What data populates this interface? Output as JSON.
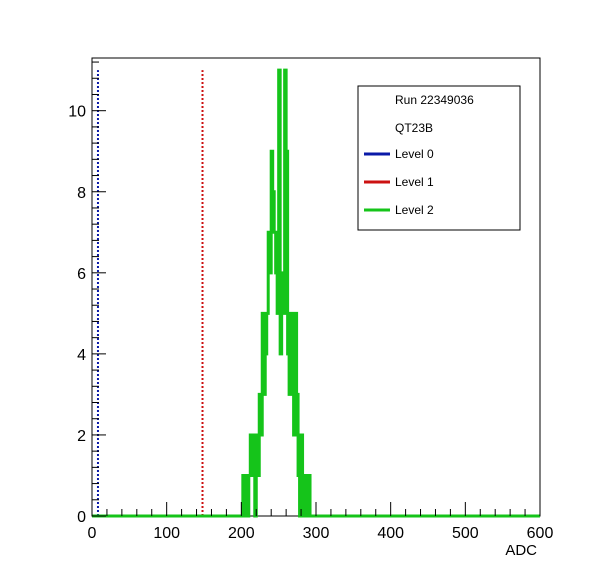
{
  "chart_data": {
    "type": "histogram-step",
    "title": "",
    "xlabel": "ADC",
    "ylabel": "",
    "xlim": [
      0,
      600
    ],
    "ylim": [
      0,
      11.3
    ],
    "x_ticks": [
      0,
      100,
      200,
      300,
      400,
      500,
      600
    ],
    "y_ticks": [
      0,
      2,
      4,
      6,
      8,
      10
    ],
    "grid": false,
    "legend": {
      "position": "top-right",
      "header": [
        "Run 22349036",
        "QT23B"
      ],
      "entries": [
        {
          "label": "Level 0",
          "color": "#0a1aa8"
        },
        {
          "label": "Level 1",
          "color": "#cc1111"
        },
        {
          "label": "Level 2",
          "color": "#15c41a"
        }
      ]
    },
    "threshold_lines": [
      {
        "name": "Level 0",
        "x": 8,
        "color": "#0a1aa8",
        "style": "dotted"
      },
      {
        "name": "Level 1",
        "x": 148,
        "color": "#cc1111",
        "style": "dotted"
      }
    ],
    "series": [
      {
        "name": "Level 2",
        "color": "#15c41a",
        "bin_width": 2,
        "bins": [
          [
            200,
            0
          ],
          [
            202,
            1
          ],
          [
            204,
            0
          ],
          [
            206,
            1
          ],
          [
            208,
            0
          ],
          [
            210,
            1
          ],
          [
            212,
            2
          ],
          [
            214,
            1
          ],
          [
            216,
            2
          ],
          [
            218,
            0
          ],
          [
            220,
            2
          ],
          [
            222,
            1
          ],
          [
            224,
            3
          ],
          [
            226,
            2
          ],
          [
            228,
            5
          ],
          [
            230,
            3
          ],
          [
            232,
            4
          ],
          [
            234,
            5
          ],
          [
            236,
            7
          ],
          [
            238,
            6
          ],
          [
            240,
            9
          ],
          [
            242,
            8
          ],
          [
            244,
            7
          ],
          [
            246,
            6
          ],
          [
            248,
            5
          ],
          [
            250,
            11
          ],
          [
            252,
            4
          ],
          [
            254,
            6
          ],
          [
            256,
            5
          ],
          [
            258,
            11
          ],
          [
            260,
            9
          ],
          [
            262,
            4
          ],
          [
            264,
            3
          ],
          [
            266,
            5
          ],
          [
            268,
            4
          ],
          [
            270,
            2
          ],
          [
            272,
            5
          ],
          [
            274,
            3
          ],
          [
            276,
            1
          ],
          [
            278,
            0
          ],
          [
            280,
            2
          ],
          [
            282,
            1
          ],
          [
            284,
            0
          ],
          [
            286,
            1
          ],
          [
            288,
            0
          ],
          [
            290,
            1
          ],
          [
            292,
            0
          ]
        ]
      }
    ]
  }
}
